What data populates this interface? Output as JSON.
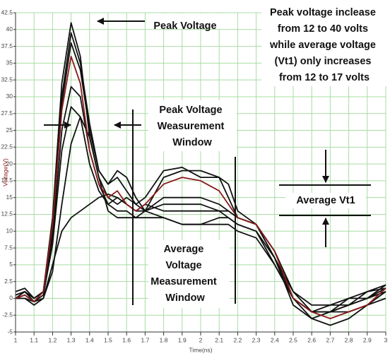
{
  "chart_data": {
    "type": "line",
    "x_label": "Time(ns)",
    "y_label": "Voltage(V)",
    "annotations": {
      "peak": "Peak Voltage",
      "note": [
        "Peak voltage inclease",
        "from 12 to 40 volts",
        "while average voltage",
        "(Vt1) only increases",
        "from 12 to 17 volts"
      ],
      "peak_window": [
        "Peak Voltage",
        "Weasurement",
        "Window"
      ],
      "average_vt1": "Average Vt1",
      "average_window": [
        "Average",
        "Voltage",
        "Measurement",
        "Window"
      ]
    },
    "x": [
      1.0,
      1.05,
      1.1,
      1.15,
      1.2,
      1.25,
      1.3,
      1.35,
      1.4,
      1.45,
      1.5,
      1.55,
      1.6,
      1.65,
      1.7,
      1.8,
      1.9,
      2.0,
      2.1,
      2.15,
      2.2,
      2.3,
      2.4,
      2.5,
      2.6,
      2.7,
      2.8,
      2.9,
      3.0
    ],
    "series": [
      {
        "color": "#111111",
        "values": [
          0.5,
          1,
          0,
          1,
          12,
          32,
          41,
          36,
          24,
          18,
          15,
          14,
          15,
          14,
          13,
          15,
          15,
          15,
          14,
          13,
          12,
          11,
          7,
          0,
          -2,
          -1,
          0,
          0,
          1.5
        ]
      },
      {
        "color": "#111111",
        "values": [
          0,
          1,
          -0.5,
          1,
          10,
          30,
          39.5,
          35,
          26,
          19,
          17,
          18,
          16,
          14,
          15,
          19,
          19.5,
          18,
          18,
          15,
          12,
          11,
          6,
          -1,
          -3,
          -2,
          -1,
          0,
          1
        ]
      },
      {
        "color": "#111111",
        "values": [
          0.5,
          1,
          0,
          1,
          10,
          29,
          38,
          34,
          25,
          19,
          17,
          19,
          18,
          15,
          13,
          18,
          19,
          19,
          18,
          17,
          13,
          11,
          7,
          1,
          -2,
          -2,
          0,
          1,
          1.5
        ]
      },
      {
        "color": "#111111",
        "values": [
          1,
          1.5,
          0,
          1,
          9,
          25,
          31.5,
          30,
          22,
          17,
          14,
          13,
          13,
          12,
          13,
          14,
          14,
          14,
          13,
          13,
          12,
          11,
          6,
          0,
          -2,
          -2,
          -2,
          -1,
          1
        ]
      },
      {
        "color": "#111111",
        "values": [
          0,
          0.5,
          -0.5,
          0.5,
          8,
          22,
          28.5,
          27,
          20,
          16,
          14,
          15,
          14,
          13,
          14,
          13,
          13,
          13,
          13,
          12,
          11,
          10,
          5,
          0,
          -2,
          -2,
          -1,
          0,
          2
        ]
      },
      {
        "color": "#111111",
        "values": [
          0,
          0,
          -1,
          0,
          4,
          14,
          23,
          27,
          24,
          18,
          13,
          12,
          12,
          12,
          12,
          12,
          11,
          11,
          11,
          11,
          10,
          9,
          5,
          0,
          -3,
          -4,
          -3,
          -1,
          0
        ]
      },
      {
        "color": "#111111",
        "values": [
          0,
          0,
          -0.5,
          0,
          5,
          10,
          12,
          13,
          14,
          15,
          15.5,
          15,
          14,
          13,
          13,
          12,
          11,
          11,
          12,
          12,
          11,
          10,
          6,
          1,
          -1,
          -1,
          -1,
          1,
          2
        ]
      },
      {
        "color": "#8b1a1a",
        "values": [
          0,
          0.5,
          -0.5,
          1,
          11,
          28,
          36,
          32,
          22,
          17,
          15,
          16,
          14,
          13,
          14,
          17,
          18,
          17.5,
          16,
          14,
          12,
          11,
          7,
          0,
          -2,
          -3,
          -2,
          -1,
          1.5
        ]
      }
    ],
    "xlim": [
      1,
      3
    ],
    "ylim": [
      -5,
      42.5
    ],
    "xticks": [
      1,
      1.1,
      1.2,
      1.3,
      1.4,
      1.5,
      1.6,
      1.7,
      1.8,
      1.9,
      2,
      2.1,
      2.2,
      2.3,
      2.4,
      2.5,
      2.6,
      2.7,
      2.8,
      2.9,
      3
    ],
    "yticks": [
      -5,
      -2.5,
      0,
      2.5,
      5,
      7.5,
      10,
      12.5,
      15,
      17.5,
      20,
      22.5,
      25,
      27.5,
      30,
      32.5,
      35,
      37.5,
      40,
      42.5
    ],
    "grid": true
  }
}
